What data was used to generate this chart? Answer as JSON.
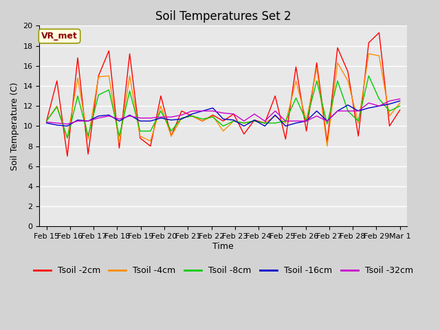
{
  "title": "Soil Temperatures Set 2",
  "xlabel": "Time",
  "ylabel": "Soil Temperature (C)",
  "annotation": "VR_met",
  "ylim": [
    0,
    20
  ],
  "yticks": [
    0,
    2,
    4,
    6,
    8,
    10,
    12,
    14,
    16,
    18,
    20
  ],
  "background_color": "#d3d3d3",
  "plot_bg_color": "#e8e8e8",
  "x_labels": [
    "Feb 15",
    "Feb 16",
    "Feb 17",
    "Feb 18",
    "Feb 19",
    "Feb 20",
    "Feb 21",
    "Feb 22",
    "Feb 23",
    "Feb 24",
    "Feb 25",
    "Feb 26",
    "Feb 27",
    "Feb 28",
    "Feb 29",
    "Mar 1"
  ],
  "series": {
    "Tsoil -2cm": {
      "color": "#ff0000",
      "data": [
        10.5,
        14.5,
        7.0,
        16.8,
        7.2,
        15.0,
        17.5,
        7.8,
        17.2,
        8.8,
        8.0,
        13.0,
        9.0,
        11.5,
        11.0,
        10.5,
        11.1,
        10.5,
        11.2,
        9.2,
        10.6,
        10.3,
        13.0,
        8.7,
        15.9,
        9.5,
        16.3,
        8.4,
        17.8,
        15.4,
        9.0,
        18.3,
        19.3,
        10.0,
        11.6
      ]
    },
    "Tsoil -4cm": {
      "color": "#ff8c00",
      "data": [
        10.5,
        12.0,
        8.8,
        14.8,
        8.7,
        14.9,
        15.0,
        8.3,
        15.0,
        9.0,
        8.5,
        12.0,
        9.0,
        10.8,
        11.0,
        10.5,
        11.0,
        9.5,
        10.5,
        10.3,
        10.5,
        10.3,
        11.0,
        10.3,
        14.5,
        10.5,
        15.8,
        8.0,
        16.3,
        14.5,
        10.3,
        17.2,
        17.0,
        11.0,
        12.3
      ]
    },
    "Tsoil -8cm": {
      "color": "#00cc00",
      "data": [
        10.5,
        11.9,
        8.8,
        13.0,
        9.0,
        13.1,
        13.6,
        9.0,
        13.5,
        9.5,
        9.5,
        11.5,
        9.5,
        10.8,
        11.0,
        10.7,
        10.9,
        10.0,
        10.5,
        10.3,
        10.5,
        10.3,
        10.3,
        10.5,
        12.8,
        10.5,
        14.5,
        10.2,
        14.5,
        11.5,
        10.5,
        15.0,
        12.7,
        11.5,
        12.0
      ]
    },
    "Tsoil -16cm": {
      "color": "#0000cc",
      "data": [
        10.3,
        10.1,
        10.0,
        10.6,
        10.5,
        11.0,
        11.1,
        10.5,
        11.1,
        10.5,
        10.5,
        10.8,
        10.6,
        10.7,
        11.2,
        11.5,
        11.8,
        10.7,
        10.6,
        10.0,
        10.6,
        10.0,
        11.1,
        10.0,
        10.3,
        10.5,
        11.5,
        10.5,
        11.5,
        12.1,
        11.5,
        11.8,
        12.0,
        12.2,
        12.5
      ]
    },
    "Tsoil -32cm": {
      "color": "#cc00cc",
      "data": [
        10.4,
        10.3,
        10.2,
        10.5,
        10.5,
        10.8,
        11.0,
        10.7,
        11.0,
        10.8,
        10.8,
        10.9,
        10.9,
        11.1,
        11.5,
        11.5,
        11.5,
        11.3,
        11.2,
        10.5,
        11.2,
        10.5,
        11.5,
        10.5,
        10.5,
        10.5,
        11.0,
        10.5,
        11.5,
        11.5,
        11.5,
        12.3,
        12.0,
        12.5,
        12.7
      ]
    }
  },
  "title_fontsize": 12,
  "axis_fontsize": 9,
  "tick_fontsize": 8,
  "legend_fontsize": 9
}
